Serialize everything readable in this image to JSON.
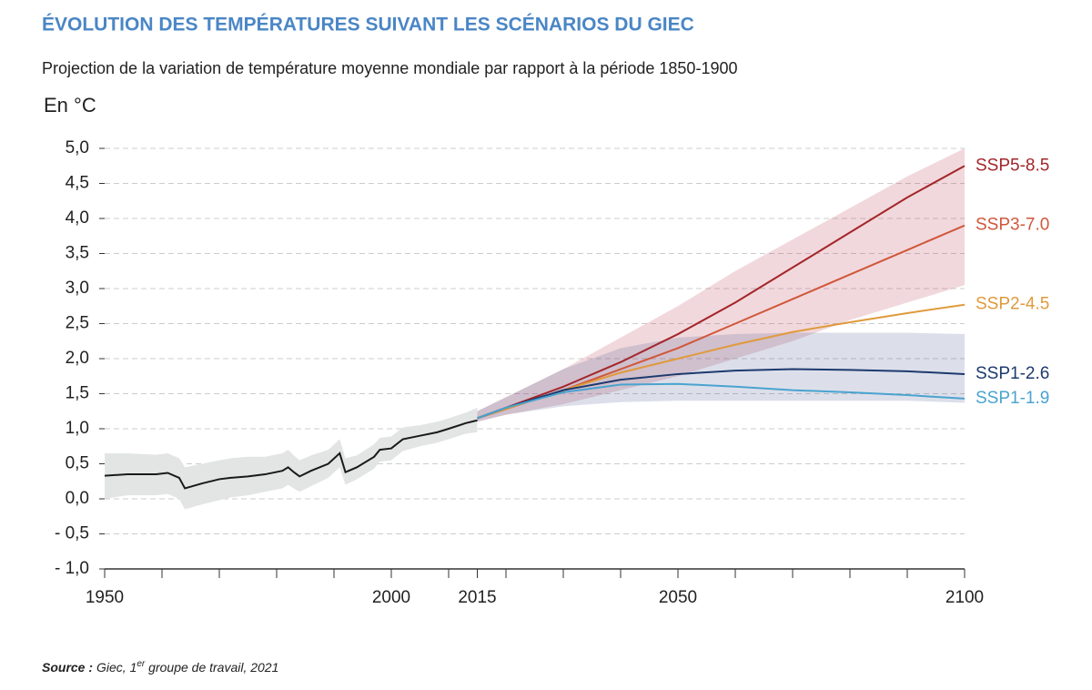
{
  "chart_data": {
    "type": "line",
    "title": "ÉVOLUTION DES TEMPÉRATURES SUIVANT LES SCÉNARIOS DU GIEC",
    "subtitle": "Projection de la variation de température moyenne mondiale par rapport à la période 1850-1900",
    "y_unit": "En °C",
    "xlim": [
      1950,
      2100
    ],
    "xticks": [
      1950,
      2000,
      2015,
      2050,
      2100
    ],
    "xminor": [
      1960,
      1970,
      1980,
      1990,
      2010,
      2020,
      2030,
      2040,
      2060,
      2070,
      2080,
      2090
    ],
    "ylim": [
      -1.0,
      5.0
    ],
    "yticks": [
      {
        "value": 5.0,
        "label": "5,0"
      },
      {
        "value": 4.5,
        "label": "4,5"
      },
      {
        "value": 4.0,
        "label": "4,0"
      },
      {
        "value": 3.5,
        "label": "3,5"
      },
      {
        "value": 3.0,
        "label": "3,0"
      },
      {
        "value": 2.5,
        "label": "2,5"
      },
      {
        "value": 2.0,
        "label": "2,0"
      },
      {
        "value": 1.5,
        "label": "1,5"
      },
      {
        "value": 1.0,
        "label": "1,0"
      },
      {
        "value": 0.5,
        "label": "0,5"
      },
      {
        "value": 0.0,
        "label": "0,0"
      },
      {
        "value": -0.5,
        "label": "- 0,5"
      },
      {
        "value": -1.0,
        "label": "- 1,0"
      }
    ],
    "grid": true,
    "history": {
      "color": "#1a1a1a",
      "band_color": "#e3e5e5",
      "x": [
        1950,
        1954,
        1959,
        1961,
        1963,
        1964,
        1967,
        1970,
        1972,
        1975,
        1978,
        1981,
        1982,
        1983,
        1984,
        1986,
        1989,
        1991,
        1992,
        1994,
        1997,
        1998,
        2000,
        2002,
        2005,
        2008,
        2010,
        2013,
        2015
      ],
      "values": [
        0.33,
        0.35,
        0.35,
        0.37,
        0.3,
        0.15,
        0.22,
        0.28,
        0.3,
        0.32,
        0.35,
        0.4,
        0.45,
        0.38,
        0.32,
        0.4,
        0.5,
        0.65,
        0.38,
        0.45,
        0.6,
        0.7,
        0.72,
        0.85,
        0.9,
        0.95,
        1.0,
        1.08,
        1.12
      ],
      "lower": [
        0,
        0.05,
        0.05,
        0.07,
        0,
        -0.15,
        -0.08,
        -0.02,
        0.02,
        0.05,
        0.1,
        0.15,
        0.2,
        0.15,
        0.1,
        0.18,
        0.3,
        0.45,
        0.2,
        0.28,
        0.43,
        0.53,
        0.55,
        0.68,
        0.75,
        0.8,
        0.85,
        0.93,
        0.95
      ],
      "upper": [
        0.65,
        0.65,
        0.63,
        0.65,
        0.58,
        0.45,
        0.5,
        0.55,
        0.58,
        0.6,
        0.6,
        0.65,
        0.7,
        0.62,
        0.55,
        0.62,
        0.7,
        0.85,
        0.58,
        0.62,
        0.78,
        0.87,
        0.89,
        1.02,
        1.05,
        1.1,
        1.15,
        1.23,
        1.3
      ]
    },
    "x": [
      2015,
      2020,
      2030,
      2040,
      2050,
      2060,
      2070,
      2080,
      2090,
      2100
    ],
    "bands": [
      {
        "color": "rgba(185,60,80,0.2)",
        "lower": [
          1.1,
          1.2,
          1.35,
          1.55,
          1.75,
          2.0,
          2.25,
          2.55,
          2.8,
          3.05
        ],
        "upper": [
          1.25,
          1.45,
          1.85,
          2.3,
          2.75,
          3.25,
          3.7,
          4.15,
          4.6,
          5.0
        ]
      },
      {
        "color": "rgba(60,80,140,0.18)",
        "lower": [
          1.1,
          1.2,
          1.32,
          1.38,
          1.4,
          1.4,
          1.4,
          1.4,
          1.4,
          1.37
        ],
        "upper": [
          1.25,
          1.45,
          1.85,
          2.15,
          2.3,
          2.35,
          2.37,
          2.37,
          2.37,
          2.35
        ]
      }
    ],
    "series": [
      {
        "name": "SSP5-8.5",
        "color": "#a3262a",
        "values": [
          1.15,
          1.3,
          1.6,
          1.95,
          2.35,
          2.8,
          3.3,
          3.8,
          4.3,
          4.75
        ]
      },
      {
        "name": "SSP3-7.0",
        "color": "#d0573a",
        "values": [
          1.15,
          1.28,
          1.55,
          1.85,
          2.15,
          2.5,
          2.85,
          3.2,
          3.55,
          3.9
        ]
      },
      {
        "name": "SSP2-4.5",
        "color": "#e09a3c",
        "values": [
          1.15,
          1.28,
          1.55,
          1.8,
          2.0,
          2.2,
          2.38,
          2.52,
          2.65,
          2.77
        ]
      },
      {
        "name": "SSP1-2.6",
        "color": "#1d3a6e",
        "values": [
          1.15,
          1.3,
          1.55,
          1.7,
          1.78,
          1.83,
          1.85,
          1.84,
          1.82,
          1.78
        ]
      },
      {
        "name": "SSP1-1.9",
        "color": "#4aa3cf",
        "values": [
          1.15,
          1.3,
          1.52,
          1.63,
          1.64,
          1.6,
          1.55,
          1.52,
          1.48,
          1.43
        ]
      }
    ],
    "source": {
      "label": "Source :",
      "text": [
        "Giec, 1",
        "er",
        " groupe de travail, 2021"
      ]
    }
  }
}
